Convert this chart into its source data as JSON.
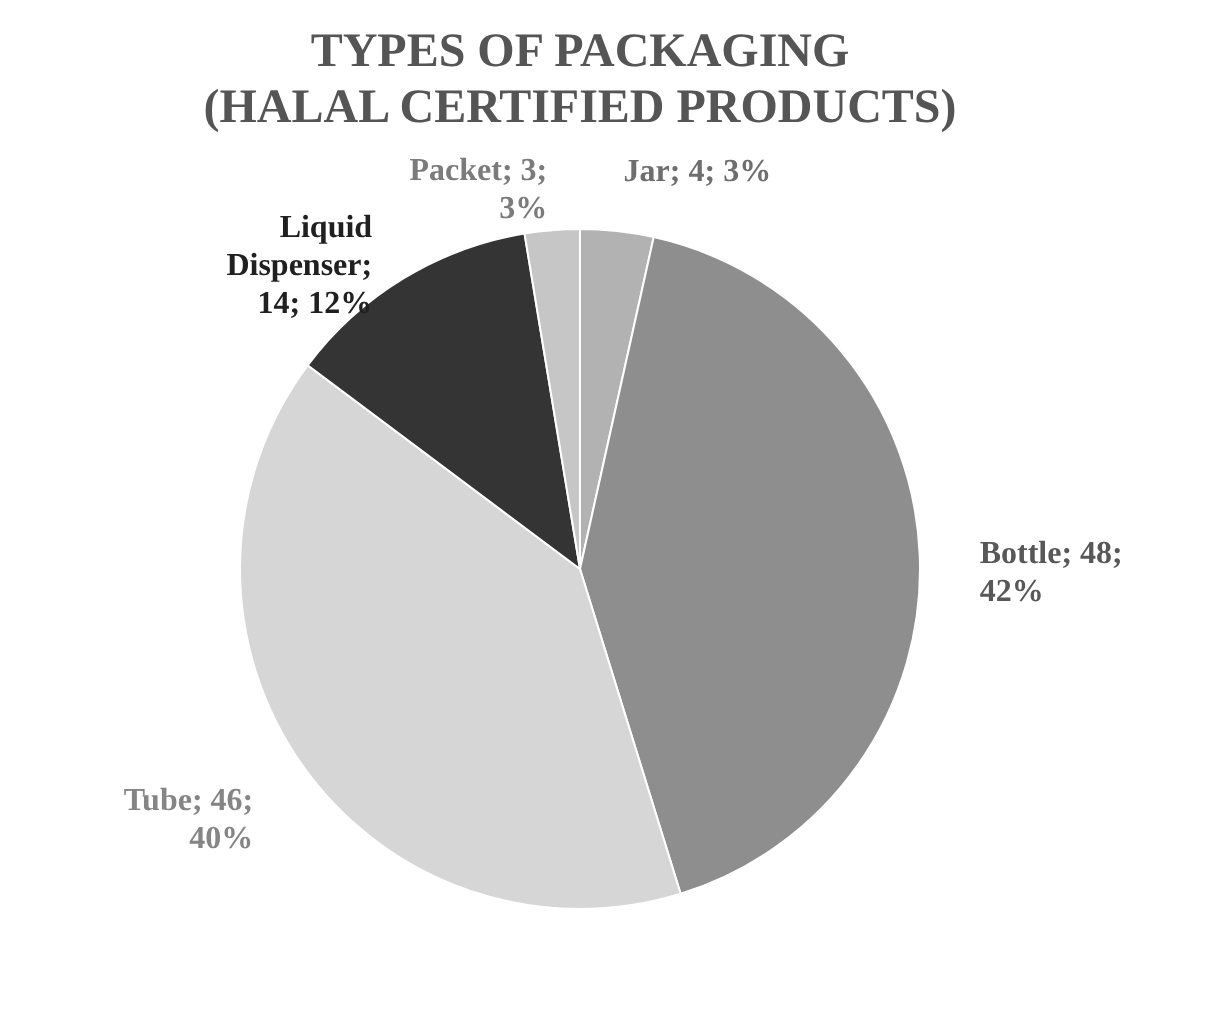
{
  "chart_data": {
    "type": "pie",
    "title": "TYPES OF PACKAGING\n(HALAL CERTIFIED PRODUCTS)",
    "categories": [
      "Jar",
      "Bottle",
      "Tube",
      "Liquid Dispenser",
      "Packet"
    ],
    "values": [
      4,
      48,
      46,
      14,
      3
    ],
    "colors": [
      "#b2b2b2",
      "#8e8e8e",
      "#d6d6d6",
      "#343434",
      "#c6c6c6"
    ],
    "value_labels": [
      "; 4; 3%",
      "; 48; 42%",
      "; 46; 40%",
      "; 14; 12%",
      "; 3; 3%"
    ]
  }
}
